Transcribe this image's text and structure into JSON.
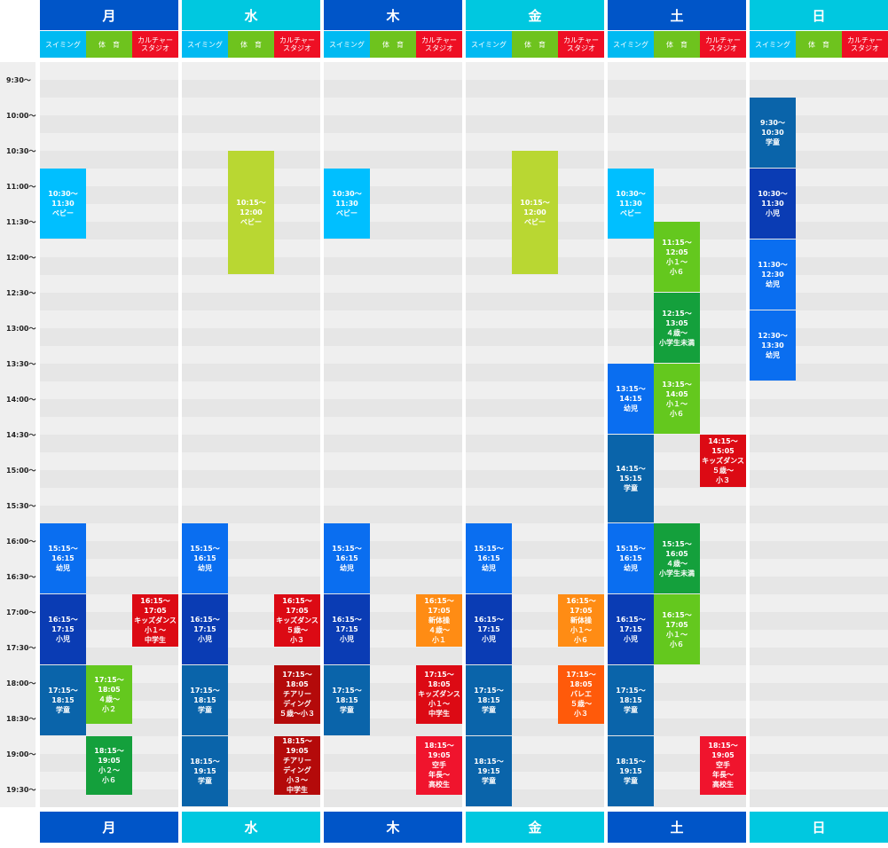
{
  "colors": {
    "swim": "#00baf2",
    "gym": "#6ec31e",
    "culture": "#ee0f24",
    "bg_gray": "#efefef",
    "bg_band": "#e6e6e6"
  },
  "categories": [
    "スイミング",
    "体　育",
    "カルチャー\nスタジオ"
  ],
  "days": [
    {
      "label": "月",
      "color": "#0055c8"
    },
    {
      "label": "水",
      "color": "#00c8e0"
    },
    {
      "label": "木",
      "color": "#0055c8"
    },
    {
      "label": "金",
      "color": "#00c8e0"
    },
    {
      "label": "土",
      "color": "#0055c8"
    },
    {
      "label": "日",
      "color": "#00c8e0"
    }
  ],
  "times": [
    "9:30〜",
    "10:00〜",
    "10:30〜",
    "11:00〜",
    "11:30〜",
    "12:00〜",
    "12:30〜",
    "13:00〜",
    "13:30〜",
    "14:00〜",
    "14:30〜",
    "15:00〜",
    "15:30〜",
    "16:00〜",
    "16:30〜",
    "17:00〜",
    "17:30〜",
    "18:00〜",
    "18:30〜",
    "19:00〜",
    "19:30〜"
  ],
  "events": [
    {
      "day": 0,
      "col": 0,
      "start": "10:30",
      "end": "11:30",
      "text": "10:30〜\n11:30\nベビー",
      "color": "#00bfff"
    },
    {
      "day": 0,
      "col": 0,
      "start": "15:30",
      "end": "16:30",
      "text": "15:15〜\n16:15\n幼児",
      "color": "#0a6ef0"
    },
    {
      "day": 0,
      "col": 0,
      "start": "16:30",
      "end": "17:30",
      "text": "16:15〜\n17:15\n小児",
      "color": "#0a3cb4"
    },
    {
      "day": 0,
      "col": 0,
      "start": "17:30",
      "end": "18:30",
      "text": "17:15〜\n18:15\n学童",
      "color": "#0a64aa"
    },
    {
      "day": 0,
      "col": 1,
      "start": "17:30",
      "end": "18:20",
      "text": "17:15〜\n18:05\n４歳〜\n小２",
      "color": "#64c81e"
    },
    {
      "day": 0,
      "col": 1,
      "start": "18:30",
      "end": "19:20",
      "text": "18:15〜\n19:05\n小２〜\n小６",
      "color": "#14a03c"
    },
    {
      "day": 0,
      "col": 2,
      "start": "16:30",
      "end": "17:15",
      "text": "16:15〜\n17:05\nキッズダンス\n小１〜\n中学生",
      "color": "#dc0a14"
    },
    {
      "day": 1,
      "col": 1,
      "start": "10:15",
      "end": "12:00",
      "text": "10:15〜\n12:00\nベビー",
      "color": "#b9d732"
    },
    {
      "day": 1,
      "col": 0,
      "start": "15:30",
      "end": "16:30",
      "text": "15:15〜\n16:15\n幼児",
      "color": "#0a6ef0"
    },
    {
      "day": 1,
      "col": 0,
      "start": "16:30",
      "end": "17:30",
      "text": "16:15〜\n17:15\n小児",
      "color": "#0a3cb4"
    },
    {
      "day": 1,
      "col": 0,
      "start": "17:30",
      "end": "18:30",
      "text": "17:15〜\n18:15\n学童",
      "color": "#0a64aa"
    },
    {
      "day": 1,
      "col": 0,
      "start": "18:30",
      "end": "19:30",
      "text": "18:15〜\n19:15\n学童",
      "color": "#0a64aa"
    },
    {
      "day": 1,
      "col": 2,
      "start": "16:30",
      "end": "17:15",
      "text": "16:15〜\n17:05\nキッズダンス\n５歳〜\n小３",
      "color": "#dc0a14"
    },
    {
      "day": 1,
      "col": 2,
      "start": "17:30",
      "end": "18:20",
      "text": "17:15〜\n18:05\nチアリー\nディング\n５歳〜小３",
      "color": "#b40a0a"
    },
    {
      "day": 1,
      "col": 2,
      "start": "18:30",
      "end": "19:20",
      "text": "18:15〜\n19:05\nチアリー\nディング\n小３〜\n中学生",
      "color": "#b40a0a"
    },
    {
      "day": 2,
      "col": 0,
      "start": "10:30",
      "end": "11:30",
      "text": "10:30〜\n11:30\nベビー",
      "color": "#00bfff"
    },
    {
      "day": 2,
      "col": 0,
      "start": "15:30",
      "end": "16:30",
      "text": "15:15〜\n16:15\n幼児",
      "color": "#0a6ef0"
    },
    {
      "day": 2,
      "col": 0,
      "start": "16:30",
      "end": "17:30",
      "text": "16:15〜\n17:15\n小児",
      "color": "#0a3cb4"
    },
    {
      "day": 2,
      "col": 0,
      "start": "17:30",
      "end": "18:30",
      "text": "17:15〜\n18:15\n学童",
      "color": "#0a64aa"
    },
    {
      "day": 2,
      "col": 2,
      "start": "16:30",
      "end": "17:15",
      "text": "16:15〜\n17:05\n新体操\n４歳〜\n小１",
      "color": "#ff8c14"
    },
    {
      "day": 2,
      "col": 2,
      "start": "17:30",
      "end": "18:20",
      "text": "17:15〜\n18:05\nキッズダンス\n小１〜\n中学生",
      "color": "#dc0a14"
    },
    {
      "day": 2,
      "col": 2,
      "start": "18:30",
      "end": "19:20",
      "text": "18:15〜\n19:05\n空手\n年長〜\n高校生",
      "color": "#f0142d"
    },
    {
      "day": 3,
      "col": 1,
      "start": "10:15",
      "end": "12:00",
      "text": "10:15〜\n12:00\nベビー",
      "color": "#b9d732"
    },
    {
      "day": 3,
      "col": 0,
      "start": "15:30",
      "end": "16:30",
      "text": "15:15〜\n16:15\n幼児",
      "color": "#0a6ef0"
    },
    {
      "day": 3,
      "col": 0,
      "start": "16:30",
      "end": "17:30",
      "text": "16:15〜\n17:15\n小児",
      "color": "#0a3cb4"
    },
    {
      "day": 3,
      "col": 0,
      "start": "17:30",
      "end": "18:30",
      "text": "17:15〜\n18:15\n学童",
      "color": "#0a64aa"
    },
    {
      "day": 3,
      "col": 0,
      "start": "18:30",
      "end": "19:30",
      "text": "18:15〜\n19:15\n学童",
      "color": "#0a64aa"
    },
    {
      "day": 3,
      "col": 2,
      "start": "16:30",
      "end": "17:15",
      "text": "16:15〜\n17:05\n新体操\n小１〜\n小６",
      "color": "#ff8c14"
    },
    {
      "day": 3,
      "col": 2,
      "start": "17:30",
      "end": "18:20",
      "text": "17:15〜\n18:05\nバレエ\n５歳〜\n小３",
      "color": "#ff5a0a"
    },
    {
      "day": 4,
      "col": 0,
      "start": "10:30",
      "end": "11:30",
      "text": "10:30〜\n11:30\nベビー",
      "color": "#00bfff"
    },
    {
      "day": 4,
      "col": 1,
      "start": "11:15",
      "end": "12:15",
      "text": "11:15〜\n12:05\n小１〜\n小６",
      "color": "#64c81e"
    },
    {
      "day": 4,
      "col": 1,
      "start": "12:15",
      "end": "13:15",
      "text": "12:15〜\n13:05\n４歳〜\n小学生未満",
      "color": "#14a03c"
    },
    {
      "day": 4,
      "col": 0,
      "start": "13:15",
      "end": "14:15",
      "text": "13:15〜\n14:15\n幼児",
      "color": "#0a6ef0"
    },
    {
      "day": 4,
      "col": 1,
      "start": "13:15",
      "end": "14:15",
      "text": "13:15〜\n14:05\n小１〜\n小６",
      "color": "#64c81e"
    },
    {
      "day": 4,
      "col": 0,
      "start": "14:15",
      "end": "15:30",
      "text": "14:15〜\n15:15\n学童",
      "color": "#0a64aa"
    },
    {
      "day": 4,
      "col": 2,
      "start": "14:15",
      "end": "15:00",
      "text": "14:15〜\n15:05\nキッズダンス\n５歳〜\n小３",
      "color": "#dc0a14"
    },
    {
      "day": 4,
      "col": 0,
      "start": "15:30",
      "end": "16:30",
      "text": "15:15〜\n16:15\n幼児",
      "color": "#0a6ef0"
    },
    {
      "day": 4,
      "col": 1,
      "start": "15:30",
      "end": "16:30",
      "text": "15:15〜\n16:05\n４歳〜\n小学生未満",
      "color": "#14a03c"
    },
    {
      "day": 4,
      "col": 0,
      "start": "16:30",
      "end": "17:30",
      "text": "16:15〜\n17:15\n小児",
      "color": "#0a3cb4"
    },
    {
      "day": 4,
      "col": 1,
      "start": "16:30",
      "end": "17:30",
      "text": "16:15〜\n17:05\n小１〜\n小６",
      "color": "#64c81e"
    },
    {
      "day": 4,
      "col": 0,
      "start": "17:30",
      "end": "18:30",
      "text": "17:15〜\n18:15\n学童",
      "color": "#0a64aa"
    },
    {
      "day": 4,
      "col": 0,
      "start": "18:30",
      "end": "19:30",
      "text": "18:15〜\n19:15\n学童",
      "color": "#0a64aa"
    },
    {
      "day": 4,
      "col": 2,
      "start": "18:30",
      "end": "19:20",
      "text": "18:15〜\n19:05\n空手\n年長〜\n高校生",
      "color": "#f0142d"
    },
    {
      "day": 5,
      "col": 0,
      "start": "9:30",
      "end": "10:30",
      "text": "9:30〜\n10:30\n学童",
      "color": "#0a64aa"
    },
    {
      "day": 5,
      "col": 0,
      "start": "10:30",
      "end": "11:30",
      "text": "10:30〜\n11:30\n小児",
      "color": "#0a3cb4"
    },
    {
      "day": 5,
      "col": 0,
      "start": "11:30",
      "end": "12:30",
      "text": "11:30〜\n12:30\n幼児",
      "color": "#0a6ef0"
    },
    {
      "day": 5,
      "col": 0,
      "start": "12:30",
      "end": "13:30",
      "text": "12:30〜\n13:30\n幼児",
      "color": "#0a6ef0"
    }
  ]
}
